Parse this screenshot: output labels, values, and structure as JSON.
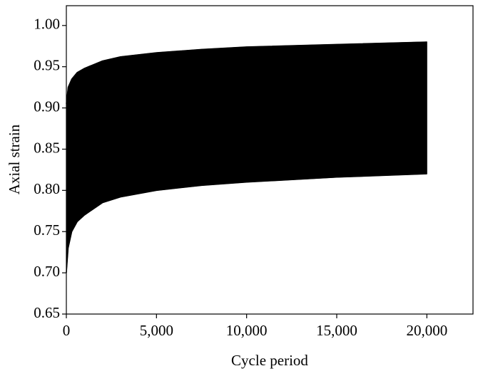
{
  "chart_data": {
    "type": "band",
    "xlabel": "Cycle period",
    "ylabel": "Axial strain",
    "x": [
      0,
      100,
      300,
      600,
      1000,
      2000,
      3000,
      5000,
      7500,
      10000,
      15000,
      20000
    ],
    "series": [
      {
        "color": "#000000",
        "values": [
          0.905,
          0.925,
          0.935,
          0.943,
          0.948,
          0.957,
          0.962,
          0.967,
          0.971,
          0.974,
          0.977,
          0.98
        ]
      },
      {
        "color": "#000000",
        "values": [
          0.7,
          0.73,
          0.75,
          0.762,
          0.77,
          0.785,
          0.792,
          0.8,
          0.806,
          0.81,
          0.816,
          0.82
        ]
      }
    ],
    "xlim": [
      0,
      22560
    ],
    "ylim": [
      0.65,
      1.024
    ],
    "xticks": [
      0,
      {
        "value": 5000,
        "label": "5,000"
      },
      {
        "value": 10000,
        "label": "10,000"
      },
      {
        "value": 15000,
        "label": "15,000"
      },
      {
        "value": 20000,
        "label": "20,000"
      }
    ],
    "yticks": [
      0.65,
      {
        "value": 0.7,
        "label": "0.70"
      },
      0.75,
      {
        "value": 0.8,
        "label": "0.80"
      },
      0.85,
      {
        "value": 0.9,
        "label": "0.90"
      },
      0.95,
      {
        "value": 1.0,
        "label": "1.00"
      }
    ],
    "grid": false
  }
}
